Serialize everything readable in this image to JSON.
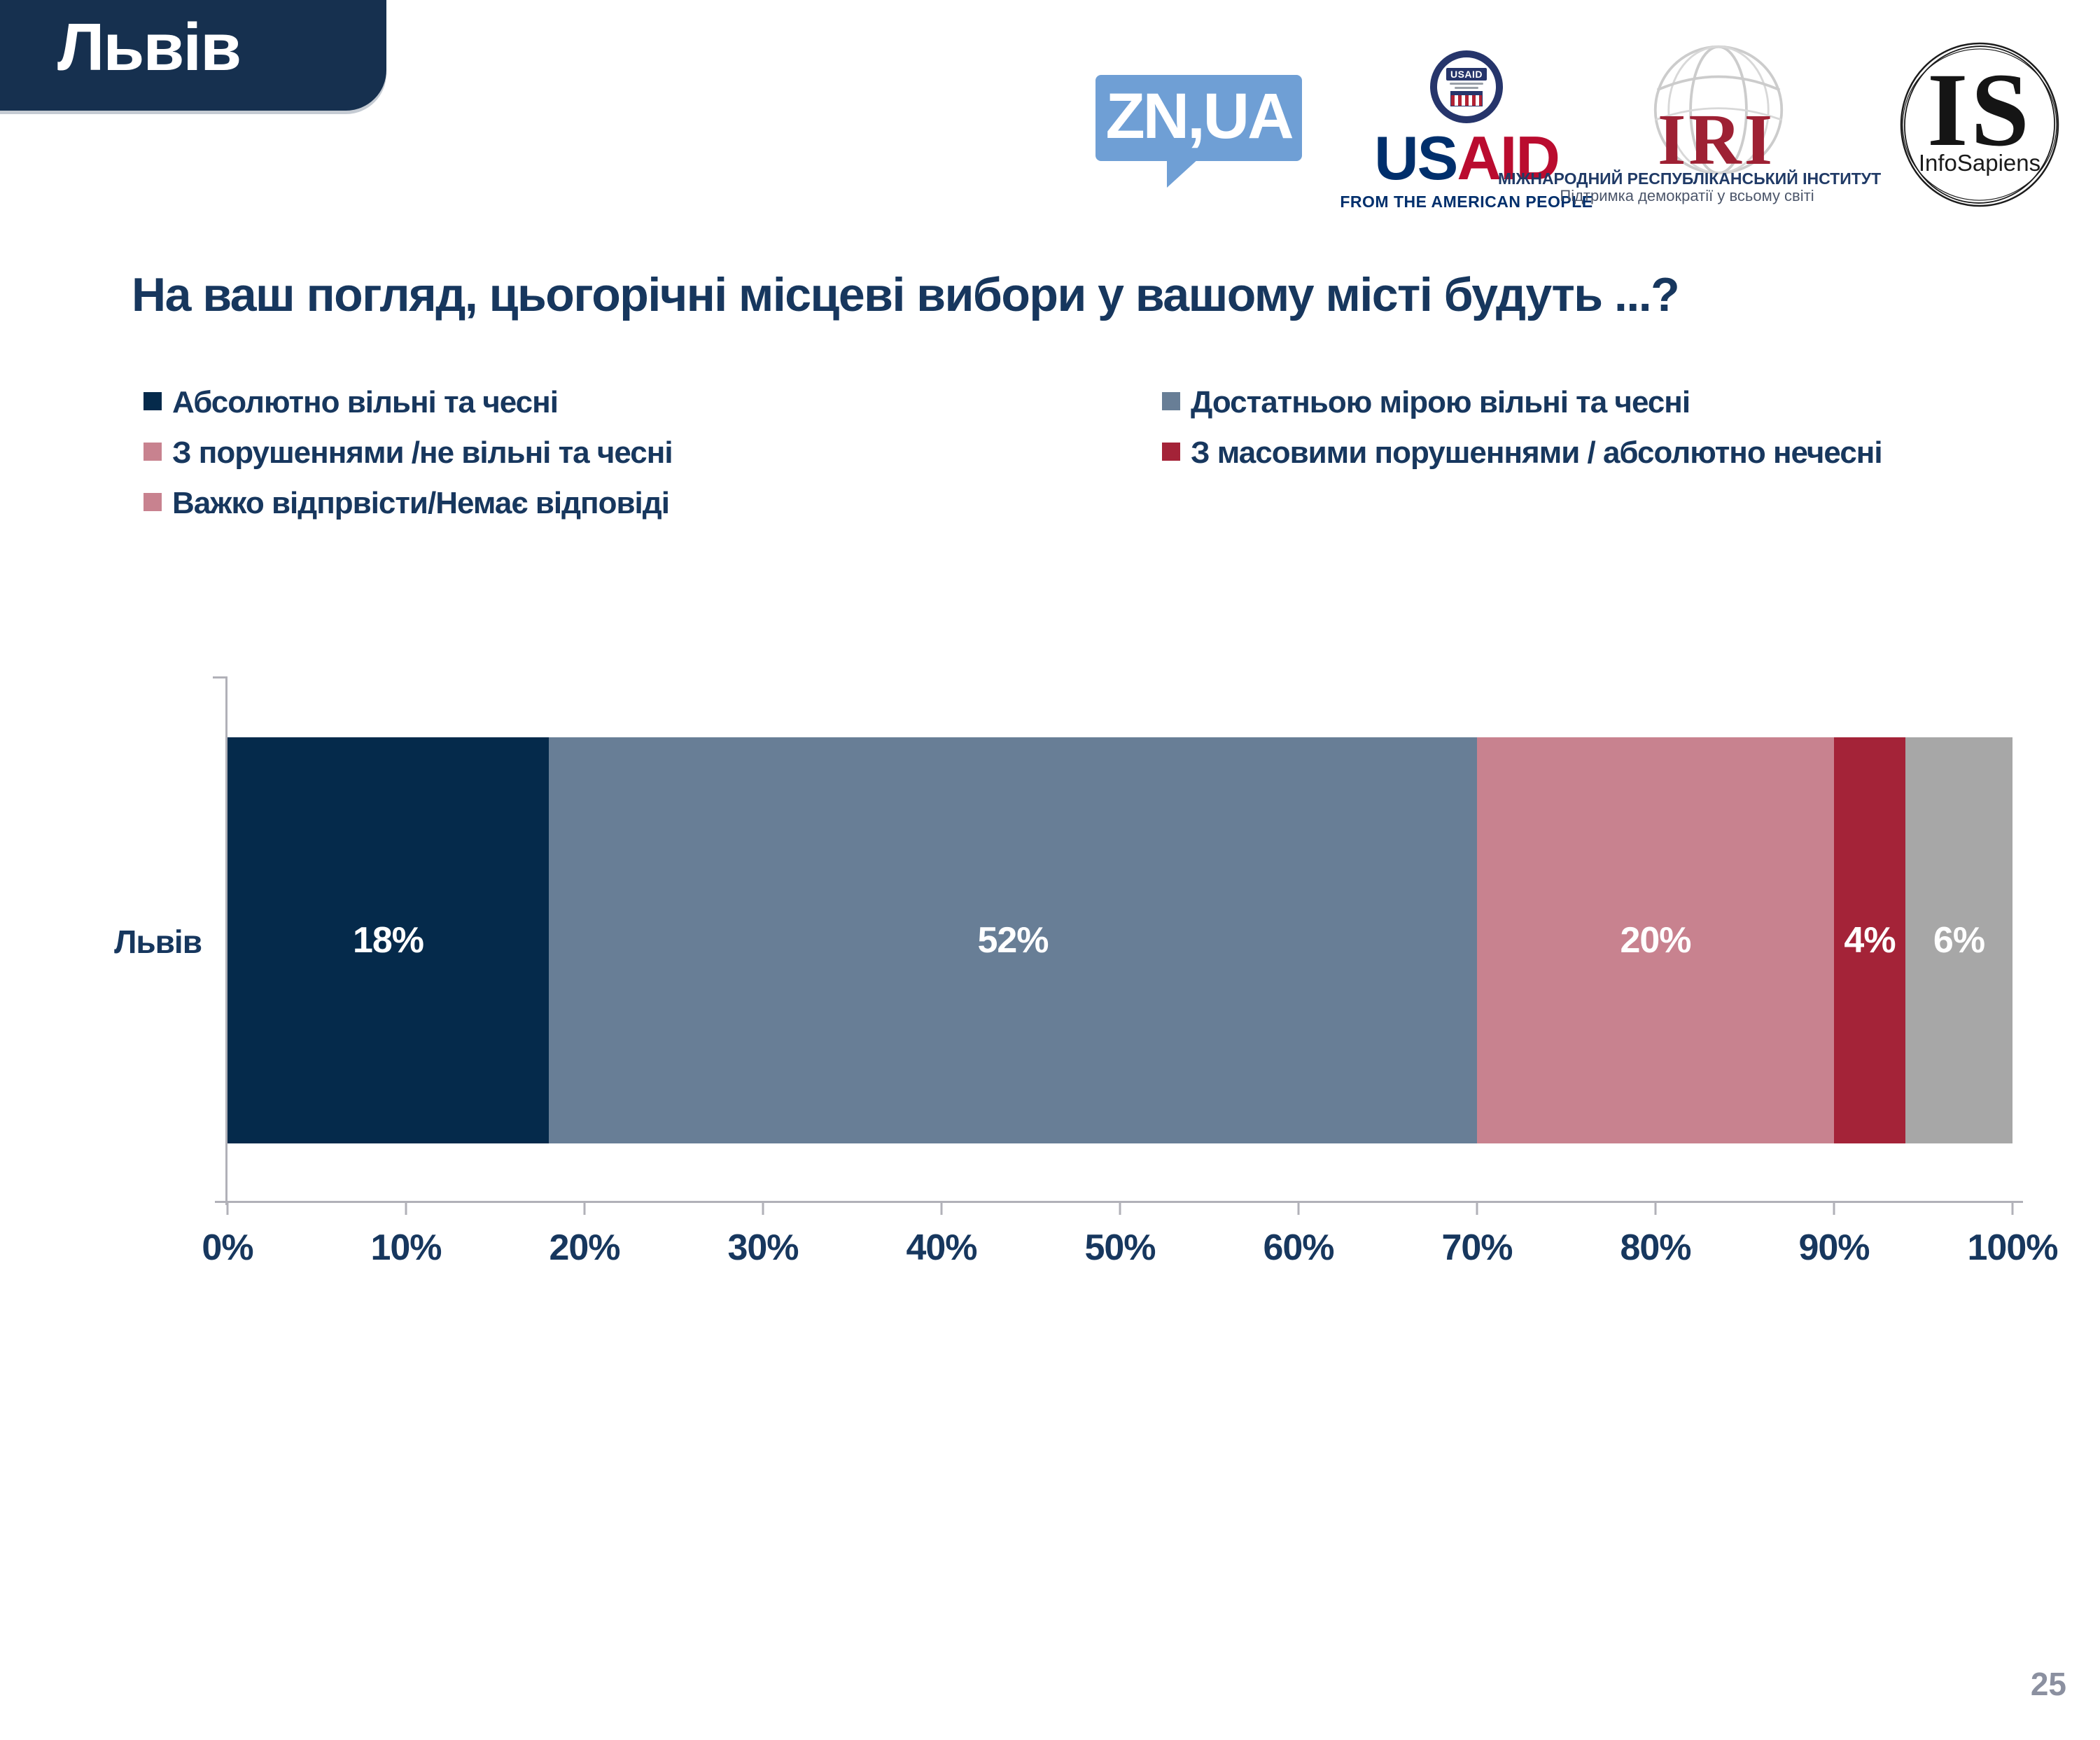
{
  "slide": {
    "page_number": "25"
  },
  "header": {
    "city_tab": "Львів"
  },
  "logos": {
    "znua": {
      "label": "ZN,UA"
    },
    "usaid": {
      "seal_label": "USAID",
      "wordmark_us": "US",
      "wordmark_aid": "AID",
      "tagline": "FROM THE AMERICAN PEOPLE"
    },
    "iri": {
      "acronym": "IRI",
      "name_line1": "МІЖНАРОДНИЙ РЕСПУБЛІКАНСЬКИЙ ІНСТИТУТ",
      "name_line2": "Підтримка демократії у всьому світі"
    },
    "infosapiens": {
      "acronym": "IS",
      "name": "InfoSapiens"
    }
  },
  "question_title": "На ваш погляд, цьогорічні місцеві вибори у вашому місті будуть ...?",
  "chart_data": {
    "type": "bar",
    "orientation": "horizontal_stacked",
    "title": "На ваш погляд, цьогорічні місцеві вибори у вашому місті будуть ...?",
    "categories": [
      "Львів"
    ],
    "series": [
      {
        "name": "Абсолютно вільні та чесні",
        "color": "#052a4b",
        "values": [
          18
        ]
      },
      {
        "name": "Достатньою мірою вільні та чесні",
        "color": "#687e96",
        "values": [
          52
        ]
      },
      {
        "name": "З порушеннями /не вільні та чесні",
        "color": "#c8828f",
        "values": [
          20
        ]
      },
      {
        "name": "З масовими порушеннями / абсолютно нечесні",
        "color": "#a42338",
        "values": [
          4
        ]
      },
      {
        "name": "Важко відпрвісти/Немає відповіді",
        "color": "#a7a7a7",
        "legend_color": "#c8828f",
        "values": [
          6
        ]
      }
    ],
    "value_suffix": "%",
    "xlim": [
      0,
      100
    ],
    "x_ticks": [
      "0%",
      "10%",
      "20%",
      "30%",
      "40%",
      "50%",
      "60%",
      "70%",
      "80%",
      "90%",
      "100%"
    ],
    "grid": false,
    "legend_position": "top-left-two-columns",
    "bar_label_color": "#ffffff",
    "axis_color": "#b1b1b8",
    "text_color": "#17375e"
  }
}
